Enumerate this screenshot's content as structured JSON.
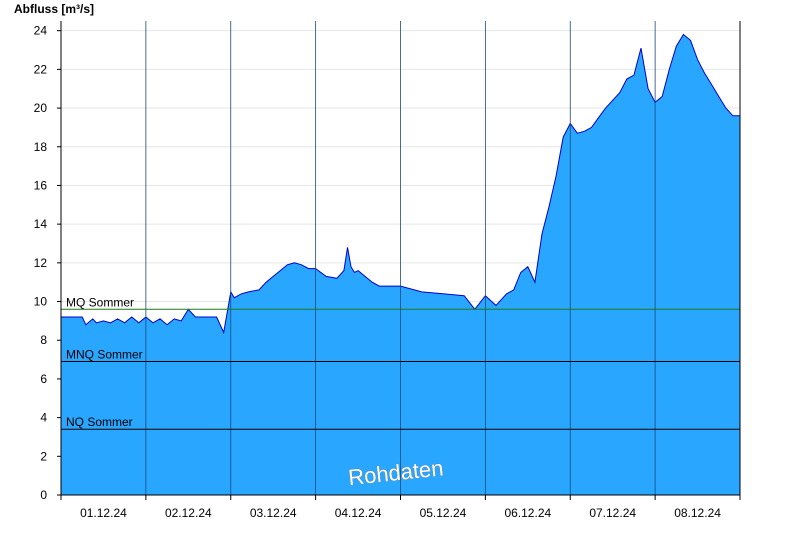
{
  "chart_data": {
    "type": "area",
    "title": "",
    "ylabel": "Abfluss [m³/s]",
    "xlabel": "",
    "ylim": [
      0,
      24.5
    ],
    "yticks": [
      0,
      2,
      4,
      6,
      8,
      10,
      12,
      14,
      16,
      18,
      20,
      22,
      24
    ],
    "x_range_days": [
      "01.12.24",
      "08.12.24"
    ],
    "x_tick_labels": [
      "01.12.24",
      "02.12.24",
      "03.12.24",
      "04.12.24",
      "05.12.24",
      "06.12.24",
      "07.12.24",
      "08.12.24"
    ],
    "grid": true,
    "fill_color": "#29a6ff",
    "line_color": "#0000cc",
    "reference_lines": [
      {
        "label": "MQ Sommer",
        "value": 9.6,
        "color": "#1a7a1a"
      },
      {
        "label": "MNQ Sommer",
        "value": 6.9,
        "color": "#000000"
      },
      {
        "label": "NQ Sommer",
        "value": 3.4,
        "color": "#000000"
      }
    ],
    "watermark": "Rohdaten",
    "series": [
      {
        "x": [
          "01.12.24 00:00",
          "01.12.24 06:00",
          "01.12.24 07:00",
          "01.12.24 09:00",
          "01.12.24 10:00",
          "01.12.24 12:00",
          "01.12.24 14:00",
          "01.12.24 16:00",
          "01.12.24 18:00",
          "01.12.24 20:00",
          "01.12.24 22:00",
          "02.12.24 00:00",
          "02.12.24 02:00",
          "02.12.24 04:00",
          "02.12.24 06:00",
          "02.12.24 08:00",
          "02.12.24 10:00",
          "02.12.24 12:00",
          "02.12.24 14:00",
          "02.12.24 16:00",
          "02.12.24 18:00",
          "02.12.24 20:00",
          "02.12.24 22:00",
          "03.12.24 00:00",
          "03.12.24 01:00",
          "03.12.24 03:00",
          "03.12.24 05:00",
          "03.12.24 08:00",
          "03.12.24 10:00",
          "03.12.24 12:00",
          "03.12.24 14:00",
          "03.12.24 16:00",
          "03.12.24 18:00",
          "03.12.24 20:00",
          "03.12.24 22:00",
          "04.12.24 00:00",
          "04.12.24 03:00",
          "04.12.24 06:00",
          "04.12.24 08:00",
          "04.12.24 09:00",
          "04.12.24 10:00",
          "04.12.24 11:00",
          "04.12.24 12:00",
          "04.12.24 14:00",
          "04.12.24 16:00",
          "04.12.24 18:00",
          "04.12.24 21:00",
          "05.12.24 00:00",
          "05.12.24 06:00",
          "05.12.24 12:00",
          "05.12.24 18:00",
          "05.12.24 21:00",
          "06.12.24 00:00",
          "06.12.24 03:00",
          "06.12.24 06:00",
          "06.12.24 08:00",
          "06.12.24 10:00",
          "06.12.24 12:00",
          "06.12.24 14:00",
          "06.12.24 16:00",
          "06.12.24 18:00",
          "06.12.24 20:00",
          "06.12.24 22:00",
          "07.12.24 00:00",
          "07.12.24 02:00",
          "07.12.24 04:00",
          "07.12.24 06:00",
          "07.12.24 08:00",
          "07.12.24 10:00",
          "07.12.24 12:00",
          "07.12.24 14:00",
          "07.12.24 16:00",
          "07.12.24 18:00",
          "07.12.24 20:00",
          "07.12.24 22:00",
          "08.12.24 00:00",
          "08.12.24 02:00",
          "08.12.24 04:00",
          "08.12.24 06:00",
          "08.12.24 08:00",
          "08.12.24 10:00",
          "08.12.24 12:00",
          "08.12.24 14:00",
          "08.12.24 16:00",
          "08.12.24 18:00",
          "08.12.24 20:00",
          "08.12.24 22:00"
        ],
        "values": [
          9.2,
          9.2,
          8.8,
          9.1,
          8.9,
          9.0,
          8.9,
          9.1,
          8.9,
          9.2,
          8.9,
          9.2,
          8.9,
          9.1,
          8.8,
          9.1,
          9.0,
          9.6,
          9.2,
          9.2,
          9.2,
          9.2,
          8.4,
          10.5,
          10.2,
          10.4,
          10.5,
          10.6,
          11.0,
          11.3,
          11.6,
          11.9,
          12.0,
          11.9,
          11.7,
          11.7,
          11.3,
          11.2,
          11.6,
          12.8,
          11.8,
          11.5,
          11.6,
          11.3,
          11.0,
          10.8,
          10.8,
          10.8,
          10.5,
          10.4,
          10.3,
          9.6,
          10.3,
          9.8,
          10.4,
          10.6,
          11.5,
          11.8,
          11.0,
          13.5,
          14.9,
          16.5,
          18.5,
          19.2,
          18.7,
          18.8,
          19.0,
          19.5,
          20.0,
          20.4,
          20.8,
          21.5,
          21.7,
          23.1,
          21.0,
          20.3,
          20.6,
          22.0,
          23.2,
          23.8,
          23.5,
          22.5,
          21.8,
          21.2,
          20.6,
          20.0,
          19.6
        ]
      }
    ]
  }
}
